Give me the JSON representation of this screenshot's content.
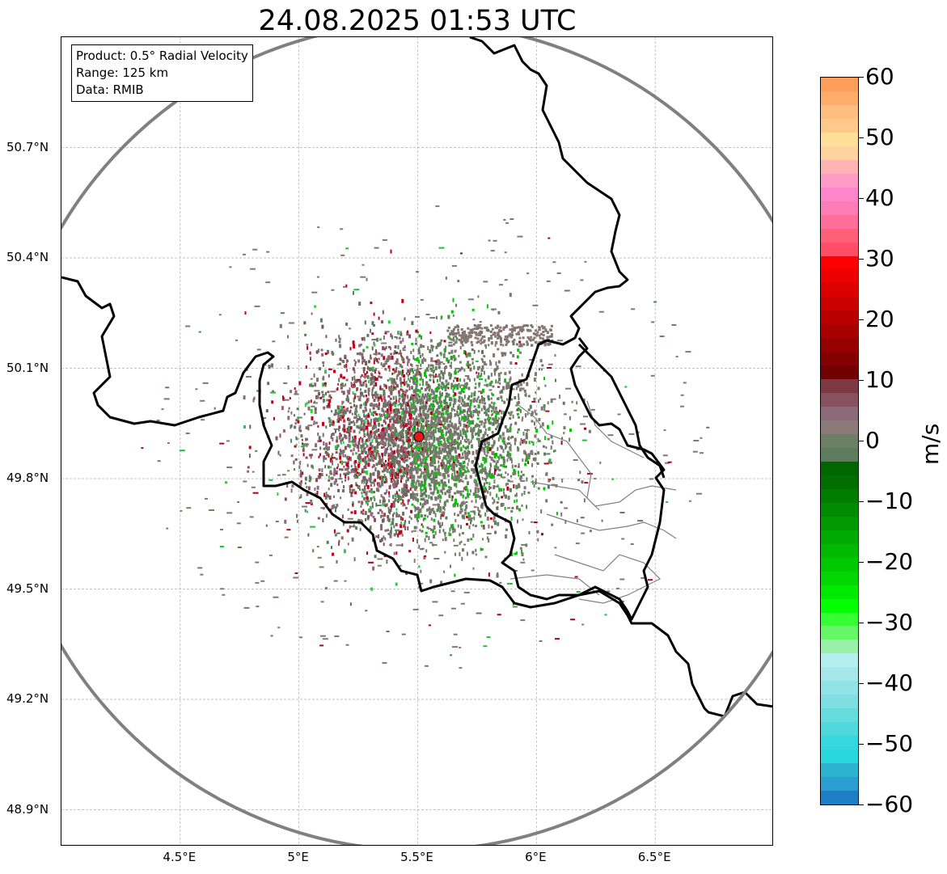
{
  "title": "24.08.2025 01:53 UTC",
  "info": {
    "product": "Product: 0.5° Radial Velocity",
    "range": "Range: 125 km",
    "data": "Data: RMIB"
  },
  "map": {
    "lon_range": [
      4.0,
      7.0
    ],
    "lat_range": [
      48.8,
      51.0
    ],
    "lat_ticks": [
      {
        "value": 50.7,
        "label": "50.7°N"
      },
      {
        "value": 50.4,
        "label": "50.4°N"
      },
      {
        "value": 50.1,
        "label": "50.1°N"
      },
      {
        "value": 49.8,
        "label": "49.8°N"
      },
      {
        "value": 49.5,
        "label": "49.5°N"
      },
      {
        "value": 49.2,
        "label": "49.2°N"
      },
      {
        "value": 48.9,
        "label": "48.9°N"
      }
    ],
    "lon_ticks": [
      {
        "value": 4.5,
        "label": "4.5°E"
      },
      {
        "value": 5.0,
        "label": "5°E"
      },
      {
        "value": 5.5,
        "label": "5.5°E"
      },
      {
        "value": 6.0,
        "label": "6°E"
      },
      {
        "value": 6.5,
        "label": "6.5°E"
      }
    ],
    "radar_site": {
      "lon": 5.505,
      "lat": 49.914
    },
    "range_km": 125,
    "gridlines": true,
    "colors": {
      "range_ring": "#808080",
      "border": "#000000",
      "admin": "#808080",
      "site_marker": "#e8141c",
      "grid": "#b0b0b0"
    }
  },
  "colorbar": {
    "unit": "m/s",
    "min": -60,
    "max": 60,
    "tick_labels": [
      "60",
      "50",
      "40",
      "30",
      "20",
      "10",
      "0",
      "−10",
      "−20",
      "−30",
      "−40",
      "−50",
      "−60"
    ],
    "tick_values": [
      60,
      50,
      40,
      30,
      20,
      10,
      0,
      -10,
      -20,
      -30,
      -40,
      -50,
      -60
    ],
    "colors_top_to_bottom": [
      "#ff9e5a",
      "#ffac6a",
      "#ffbd7f",
      "#ffc98c",
      "#ffe09a",
      "#ffd39e",
      "#ffb2b2",
      "#ff9bc6",
      "#ff85cb",
      "#ff7db7",
      "#ff6f9a",
      "#ff6079",
      "#ff4e66",
      "#ff0000",
      "#ee0000",
      "#dc0000",
      "#cb0000",
      "#b90000",
      "#a80000",
      "#960000",
      "#850000",
      "#720000",
      "#7d3a45",
      "#87525e",
      "#8c6a7a",
      "#8c7a7a",
      "#6d8066",
      "#5c7d5d",
      "#006600",
      "#006e00",
      "#007d00",
      "#008c00",
      "#009a00",
      "#00aa00",
      "#00b900",
      "#00c800",
      "#00d600",
      "#00ea00",
      "#00ff00",
      "#33ff33",
      "#66f766",
      "#99f0a8",
      "#b5eeef",
      "#a6e8ea",
      "#90e4e6",
      "#7ddfe2",
      "#66dcdf",
      "#4fd9dd",
      "#36d7de",
      "#29d8dd",
      "#2db3d0",
      "#2a9fcf",
      "#1e7fc7"
    ]
  }
}
